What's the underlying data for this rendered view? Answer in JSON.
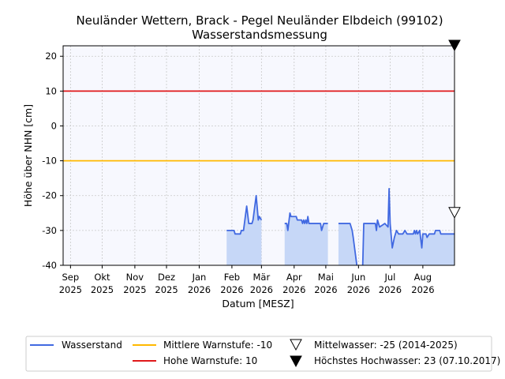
{
  "chart_data": {
    "type": "line",
    "title": "Neuländer Wettern, Brack - Pegel Neuländer Elbdeich (99102)",
    "subtitle": "Wasserstandsmessung",
    "xlabel": "Datum [MESZ]",
    "ylabel": "Höhe über NHN [cm]",
    "xlim": [
      "2025-08-25",
      "2026-08-31"
    ],
    "ylim": [
      -40,
      23
    ],
    "yticks": [
      20,
      10,
      0,
      -10,
      -20,
      -30,
      -40
    ],
    "xticks": [
      {
        "date": "2025-09-01",
        "label1": "Sep",
        "label2": "2025"
      },
      {
        "date": "2025-10-01",
        "label1": "Okt",
        "label2": "2025"
      },
      {
        "date": "2025-11-01",
        "label1": "Nov",
        "label2": "2025"
      },
      {
        "date": "2025-12-01",
        "label1": "Dez",
        "label2": "2025"
      },
      {
        "date": "2026-01-01",
        "label1": "Jan",
        "label2": "2026"
      },
      {
        "date": "2026-02-01",
        "label1": "Feb",
        "label2": "2026"
      },
      {
        "date": "2026-03-01",
        "label1": "Mär",
        "label2": "2026"
      },
      {
        "date": "2026-04-01",
        "label1": "Apr",
        "label2": "2026"
      },
      {
        "date": "2026-05-01",
        "label1": "Mai",
        "label2": "2026"
      },
      {
        "date": "2026-06-01",
        "label1": "Jun",
        "label2": "2026"
      },
      {
        "date": "2026-07-01",
        "label1": "Jul",
        "label2": "2026"
      },
      {
        "date": "2026-08-01",
        "label1": "Aug",
        "label2": "2026"
      }
    ],
    "grid": true,
    "legend_position": "bottom",
    "colors": {
      "wasserstand": "#4169e1",
      "fill": "#c6d7f7",
      "mittlere": "#ffb900",
      "hohe": "#e0191b",
      "plot_bg": "#f7f8fe",
      "grid": "#c8c8c8"
    },
    "hlines": [
      {
        "name": "Hohe Warnstufe: 10",
        "value": 10,
        "color": "#e0191b"
      },
      {
        "name": "Mittlere Warnstufe: -10",
        "value": -10,
        "color": "#ffb900"
      }
    ],
    "markers": [
      {
        "name": "Mittelwasser: -25 (2014-2025)",
        "value": -25,
        "style": "open-triangle-down"
      },
      {
        "name": "Höchstes Hochwasser: 23 (07.10.2017)",
        "value": 23,
        "style": "filled-triangle-down"
      }
    ],
    "series": [
      {
        "name": "Wasserstand",
        "segments": [
          [
            [
              "2026-01-27",
              -30
            ],
            [
              "2026-02-03",
              -30
            ],
            [
              "2026-02-04",
              -31
            ],
            [
              "2026-02-09",
              -31
            ],
            [
              "2026-02-10",
              -30
            ],
            [
              "2026-02-12",
              -30
            ],
            [
              "2026-02-15",
              -23
            ],
            [
              "2026-02-17",
              -28
            ],
            [
              "2026-02-20",
              -28
            ],
            [
              "2026-02-21",
              -27
            ],
            [
              "2026-02-24",
              -20
            ],
            [
              "2026-02-26",
              -27
            ],
            [
              "2026-02-27",
              -26
            ],
            [
              "2026-03-01",
              -27
            ]
          ],
          [
            [
              "2026-03-23",
              -28
            ],
            [
              "2026-03-25",
              -28
            ],
            [
              "2026-03-26",
              -30
            ],
            [
              "2026-03-28",
              -25
            ],
            [
              "2026-03-29",
              -26
            ],
            [
              "2026-04-03",
              -26
            ],
            [
              "2026-04-04",
              -27
            ],
            [
              "2026-04-08",
              -27
            ],
            [
              "2026-04-09",
              -28
            ],
            [
              "2026-04-10",
              -27
            ],
            [
              "2026-04-11",
              -28
            ],
            [
              "2026-04-12",
              -27
            ],
            [
              "2026-04-13",
              -28
            ],
            [
              "2026-04-14",
              -26
            ],
            [
              "2026-04-15",
              -28
            ],
            [
              "2026-04-26",
              -28
            ],
            [
              "2026-04-27",
              -30
            ],
            [
              "2026-04-29",
              -28
            ],
            [
              "2026-05-03",
              -28
            ]
          ],
          [
            [
              "2026-05-13",
              -28
            ],
            [
              "2026-05-24",
              -28
            ],
            [
              "2026-05-26",
              -30
            ],
            [
              "2026-05-27",
              -32
            ],
            [
              "2026-05-30",
              -39
            ],
            [
              "2026-06-02",
              -46
            ],
            [
              "2026-06-05",
              -40
            ],
            [
              "2026-06-06",
              -28
            ],
            [
              "2026-06-17",
              -28
            ],
            [
              "2026-06-18",
              -30
            ],
            [
              "2026-06-19",
              -27
            ],
            [
              "2026-06-21",
              -29
            ],
            [
              "2026-06-26",
              -28
            ],
            [
              "2026-06-29",
              -29
            ],
            [
              "2026-06-30",
              -18
            ],
            [
              "2026-07-01",
              -28
            ],
            [
              "2026-07-03",
              -35
            ],
            [
              "2026-07-05",
              -32
            ],
            [
              "2026-07-07",
              -30
            ],
            [
              "2026-07-09",
              -31
            ],
            [
              "2026-07-13",
              -31
            ],
            [
              "2026-07-15",
              -30
            ],
            [
              "2026-07-17",
              -31
            ],
            [
              "2026-07-23",
              -31
            ],
            [
              "2026-07-24",
              -30
            ],
            [
              "2026-07-25",
              -31
            ],
            [
              "2026-07-26",
              -30
            ],
            [
              "2026-07-27",
              -31
            ],
            [
              "2026-07-29",
              -30
            ],
            [
              "2026-07-31",
              -35
            ],
            [
              "2026-08-01",
              -31
            ],
            [
              "2026-08-04",
              -31
            ],
            [
              "2026-08-05",
              -32
            ],
            [
              "2026-08-07",
              -31
            ],
            [
              "2026-08-12",
              -31
            ],
            [
              "2026-08-13",
              -30
            ],
            [
              "2026-08-17",
              -30
            ],
            [
              "2026-08-18",
              -31
            ],
            [
              "2026-08-31",
              -31
            ]
          ]
        ]
      }
    ]
  },
  "legend": {
    "wasserstand": "Wasserstand",
    "mittlere": "Mittlere Warnstufe: -10",
    "hohe": "Hohe Warnstufe: 10",
    "mittelwasser": "Mittelwasser: -25 (2014-2025)",
    "hochwasser": "Höchstes Hochwasser: 23 (07.10.2017)"
  }
}
